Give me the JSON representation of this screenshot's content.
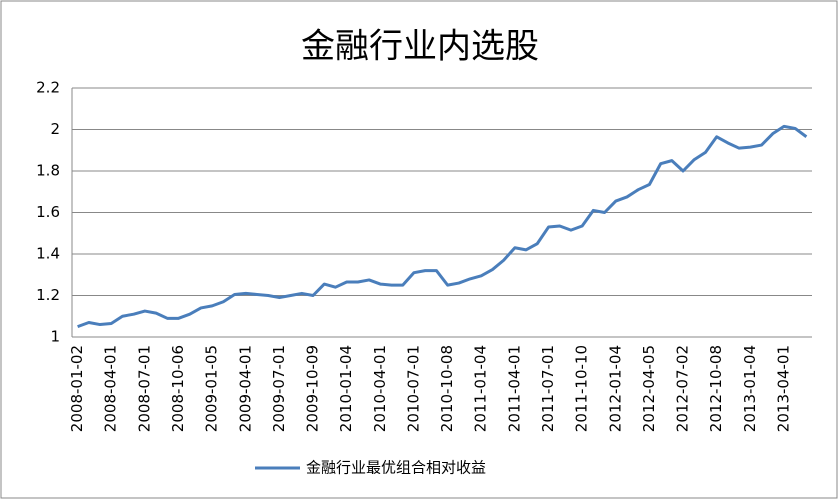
{
  "chart_data": {
    "type": "line",
    "title": "金融行业内选股",
    "categories": [
      "2008-01-02",
      null,
      null,
      "2008-04-01",
      null,
      null,
      "2008-07-01",
      null,
      null,
      "2008-10-06",
      null,
      null,
      "2009-01-05",
      null,
      null,
      "2009-04-01",
      null,
      null,
      "2009-07-01",
      null,
      null,
      "2009-10-09",
      null,
      null,
      "2010-01-04",
      null,
      null,
      "2010-04-01",
      null,
      null,
      "2010-07-01",
      null,
      null,
      "2010-10-08",
      null,
      null,
      "2011-01-04",
      null,
      null,
      "2011-04-01",
      null,
      null,
      "2011-07-01",
      null,
      null,
      "2011-10-10",
      null,
      null,
      "2012-01-04",
      null,
      null,
      "2012-04-05",
      null,
      null,
      "2012-07-02",
      null,
      null,
      "2012-10-08",
      null,
      null,
      "2013-01-04",
      null,
      null,
      "2013-04-01",
      null,
      null
    ],
    "series": [
      {
        "name": "金融行业最优组合相对收益",
        "color": "#4a7ebb",
        "values": [
          1.05,
          1.07,
          1.06,
          1.065,
          1.1,
          1.11,
          1.125,
          1.115,
          1.09,
          1.09,
          1.11,
          1.14,
          1.15,
          1.17,
          1.205,
          1.21,
          1.205,
          1.2,
          1.19,
          1.2,
          1.21,
          1.2,
          1.255,
          1.24,
          1.265,
          1.265,
          1.275,
          1.255,
          1.25,
          1.25,
          1.31,
          1.32,
          1.32,
          1.25,
          1.26,
          1.28,
          1.295,
          1.325,
          1.37,
          1.43,
          1.42,
          1.45,
          1.53,
          1.535,
          1.515,
          1.535,
          1.61,
          1.6,
          1.655,
          1.675,
          1.71,
          1.735,
          1.835,
          1.85,
          1.8,
          1.855,
          1.89,
          1.965,
          1.935,
          1.91,
          1.915,
          1.925,
          1.98,
          2.015,
          2.005,
          1.965
        ]
      }
    ],
    "ylim": [
      1,
      2.2
    ],
    "yticks": [
      1,
      1.2,
      1.4,
      1.6,
      1.8,
      2,
      2.2
    ],
    "grid": true,
    "legend": "bottom"
  }
}
